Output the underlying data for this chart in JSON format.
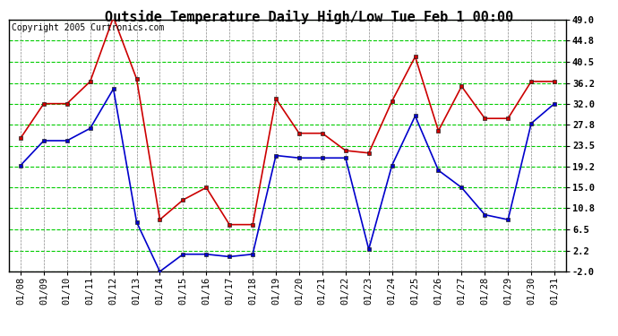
{
  "title": "Outside Temperature Daily High/Low Tue Feb 1 00:00",
  "copyright": "Copyright 2005 Curtronics.com",
  "x_labels": [
    "01/08",
    "01/09",
    "01/10",
    "01/11",
    "01/12",
    "01/13",
    "01/14",
    "01/15",
    "01/16",
    "01/17",
    "01/18",
    "01/19",
    "01/20",
    "01/21",
    "01/22",
    "01/23",
    "01/24",
    "01/25",
    "01/26",
    "01/27",
    "01/28",
    "01/29",
    "01/30",
    "01/31"
  ],
  "high_values": [
    25.0,
    32.0,
    32.0,
    36.5,
    49.5,
    37.0,
    8.5,
    12.5,
    15.0,
    7.5,
    7.5,
    33.0,
    26.0,
    26.0,
    22.5,
    22.0,
    32.5,
    41.5,
    26.5,
    35.5,
    29.0,
    29.0,
    36.5,
    36.5
  ],
  "low_values": [
    19.5,
    24.5,
    24.5,
    27.0,
    35.0,
    8.0,
    -2.0,
    1.5,
    1.5,
    1.0,
    1.5,
    21.5,
    21.0,
    21.0,
    21.0,
    2.5,
    19.5,
    29.5,
    18.5,
    15.0,
    9.5,
    8.5,
    28.0,
    32.0
  ],
  "high_color": "#cc0000",
  "low_color": "#0000cc",
  "bg_color": "#ffffff",
  "grid_color_h": "#00cc00",
  "grid_color_v": "#888888",
  "y_ticks": [
    -2.0,
    2.2,
    6.5,
    10.8,
    15.0,
    19.2,
    23.5,
    27.8,
    32.0,
    36.2,
    40.5,
    44.8,
    49.0
  ],
  "ylim_min": -2.0,
  "ylim_max": 49.0,
  "title_fontsize": 11,
  "copyright_fontsize": 7,
  "tick_fontsize": 7.5,
  "marker": "s",
  "marker_size": 2.5,
  "linewidth": 1.2
}
